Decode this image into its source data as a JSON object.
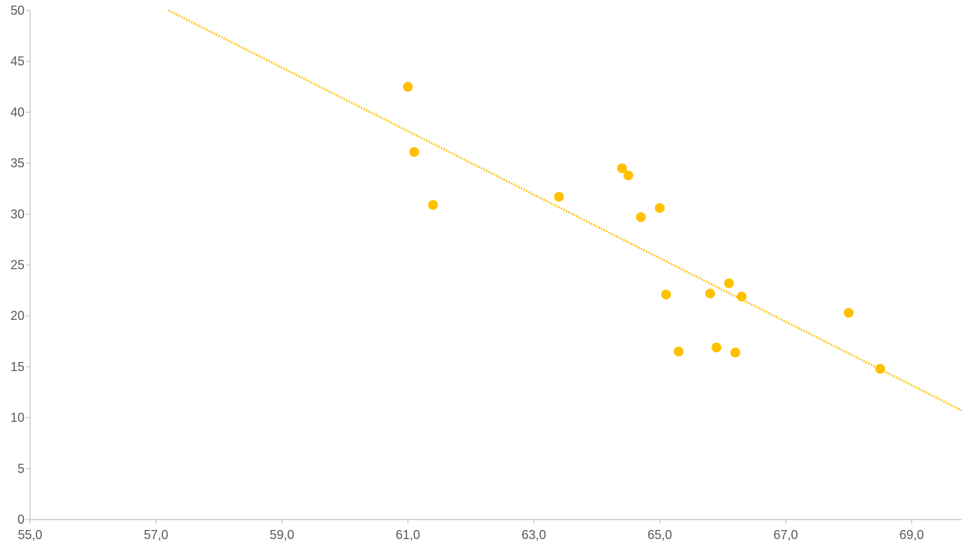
{
  "chart_data": {
    "type": "scatter",
    "title": "",
    "xlabel": "",
    "ylabel": "",
    "xlim": [
      55,
      69.8
    ],
    "ylim": [
      0,
      50
    ],
    "x_ticks": [
      55,
      57,
      59,
      61,
      63,
      65,
      67,
      69
    ],
    "x_tick_labels": [
      "55,0",
      "57,0",
      "59,0",
      "61,0",
      "63,0",
      "65,0",
      "67,0",
      "69,0"
    ],
    "y_ticks": [
      0,
      5,
      10,
      15,
      20,
      25,
      30,
      35,
      40,
      45,
      50
    ],
    "y_tick_labels": [
      "0",
      "5",
      "10",
      "15",
      "20",
      "25",
      "30",
      "35",
      "40",
      "45",
      "50"
    ],
    "grid": false,
    "series": [
      {
        "x": [
          61.0,
          61.1,
          61.4,
          63.4,
          64.4,
          64.5,
          64.7,
          65.0,
          65.1,
          65.3,
          65.8,
          65.9,
          66.1,
          66.2,
          66.3,
          68.0,
          68.5
        ],
        "y": [
          42.5,
          36.1,
          30.9,
          31.7,
          34.5,
          33.8,
          29.7,
          30.6,
          22.1,
          16.5,
          22.2,
          16.9,
          23.2,
          16.4,
          21.9,
          20.3,
          14.8
        ]
      }
    ],
    "trendline": {
      "type": "linear",
      "x": [
        57.2,
        69.8
      ],
      "y": [
        50.0,
        10.7
      ]
    },
    "colors": {
      "marker": "#ffc000",
      "trendline": "#ffc000",
      "axis": "#bfbfbf",
      "tick_text": "#595959"
    }
  }
}
